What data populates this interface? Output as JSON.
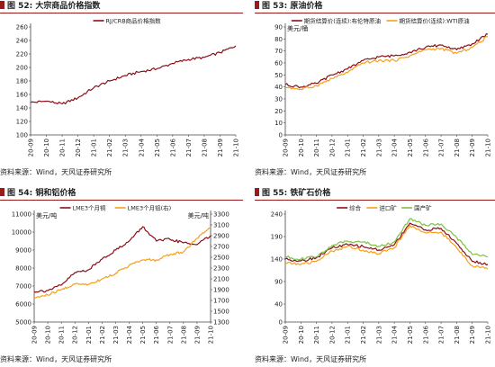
{
  "charts": [
    {
      "label": "图 52:",
      "title": "大宗商品价格指数",
      "source": "资料来源：Wind，天风证券研究所",
      "chart_data": {
        "type": "line",
        "x": [
          "2020-09",
          "2020-10",
          "2020-11",
          "2020-12",
          "2021-01",
          "2021-02",
          "2021-03",
          "2021-04",
          "2021-05",
          "2021-06",
          "2021-07",
          "2021-08",
          "2021-09",
          "2021-10"
        ],
        "series": [
          {
            "name": "RJ/CRB商品价格指数",
            "color": "#8b0f16",
            "axis": "left",
            "values": [
              148,
              150,
              146,
              155,
              170,
              180,
              188,
              194,
              198,
              206,
              212,
              215,
              222,
              232
            ]
          }
        ],
        "ylim": [
          100,
          260
        ],
        "yticks": [
          100,
          120,
          140,
          160,
          180,
          200,
          220,
          240,
          260
        ],
        "xticks": [
          "20-09",
          "20-10",
          "20-11",
          "20-12",
          "21-01",
          "21-02",
          "21-03",
          "21-04",
          "21-05",
          "21-06",
          "21-07",
          "21-08",
          "21-09",
          "21-10"
        ],
        "unit": "",
        "legend": "top-center",
        "grid": false
      }
    },
    {
      "label": "图 53:",
      "title": "原油价格",
      "source": "资料来源：Wind，天风证券研究所",
      "chart_data": {
        "type": "line",
        "x": [
          "2020-09",
          "2020-10",
          "2020-11",
          "2020-12",
          "2021-01",
          "2021-02",
          "2021-03",
          "2021-04",
          "2021-05",
          "2021-06",
          "2021-07",
          "2021-08",
          "2021-09",
          "2021-10"
        ],
        "series": [
          {
            "name": "期货结算价(连续):布伦特原油",
            "color": "#8b0f16",
            "axis": "left",
            "values": [
              42,
              40,
              43,
              50,
              55,
              62,
              65,
              66,
              69,
              73,
              75,
              71,
              76,
              84
            ]
          },
          {
            "name": "期货结算价(连续):WTI原油",
            "color": "#f5a01a",
            "axis": "left",
            "values": [
              40,
              38,
              41,
              47,
              52,
              60,
              62,
              62,
              66,
              71,
              72,
              68,
              73,
              82
            ]
          }
        ],
        "ylim": [
          0,
          90
        ],
        "yticks": [
          0,
          10,
          20,
          30,
          40,
          50,
          60,
          70,
          80,
          90
        ],
        "xticks": [
          "20-09",
          "20-10",
          "20-11",
          "20-12",
          "21-01",
          "21-02",
          "21-03",
          "21-04",
          "21-05",
          "21-06",
          "21-07",
          "21-08",
          "21-09",
          "21-10"
        ],
        "unit": "美元/桶",
        "legend": "top-center",
        "grid": false
      }
    },
    {
      "label": "图 54:",
      "title": "铜和铝价格",
      "source": "资料来源：Wind，天风证券研究所",
      "chart_data": {
        "type": "line",
        "x": [
          "2020-09",
          "2020-10",
          "2020-11",
          "2020-12",
          "2021-01",
          "2021-02",
          "2021-03",
          "2021-04",
          "2021-05",
          "2021-06",
          "2021-07",
          "2021-08",
          "2021-09",
          "2021-10"
        ],
        "series": [
          {
            "name": "LME3个月铜",
            "color": "#8b0f16",
            "axis": "left",
            "values": [
              6700,
              6750,
              7050,
              7750,
              7900,
              8500,
              9000,
              9500,
              10300,
              9500,
              9600,
              9400,
              9300,
              9800
            ]
          },
          {
            "name": "LME3个月铝(右)",
            "color": "#f5a01a",
            "axis": "right",
            "values": [
              1750,
              1800,
              1900,
              2000,
              2000,
              2100,
              2200,
              2350,
              2450,
              2450,
              2550,
              2600,
              2850,
              3050
            ]
          }
        ],
        "ylim": [
          5000,
          11000
        ],
        "yticks": [
          5000,
          6000,
          7000,
          8000,
          9000,
          10000,
          11000
        ],
        "ylim_right": [
          1300,
          3300
        ],
        "yticks_right": [
          1300,
          1500,
          1700,
          1900,
          2100,
          2300,
          2500,
          2700,
          2900,
          3100,
          3300
        ],
        "xticks": [
          "20-09",
          "20-10",
          "20-11",
          "20-12",
          "21-01",
          "21-02",
          "21-03",
          "21-04",
          "21-05",
          "21-06",
          "21-07",
          "21-08",
          "21-09",
          "21-10"
        ],
        "unit": "美元/吨",
        "unit_right": "美元/吨",
        "legend": "top-center",
        "grid": false
      }
    },
    {
      "label": "图 55:",
      "title": "铁矿石价格",
      "source": "资料来源：Wind，天风证券研究所",
      "chart_data": {
        "type": "line",
        "x": [
          "2020-09",
          "2020-10",
          "2020-11",
          "2020-12",
          "2021-01",
          "2021-02",
          "2021-03",
          "2021-04",
          "2021-05",
          "2021-06",
          "2021-07",
          "2021-08",
          "2021-09",
          "2021-10"
        ],
        "series": [
          {
            "name": "综合",
            "color": "#8b0f16",
            "axis": "left",
            "values": [
              140,
              136,
              143,
              165,
              172,
              168,
              160,
              172,
              220,
              205,
              208,
              175,
              135,
              128
            ]
          },
          {
            "name": "进口矿",
            "color": "#f5a01a",
            "axis": "left",
            "values": [
              132,
              128,
              135,
              158,
              168,
              160,
              152,
              165,
              215,
              198,
              200,
              165,
              125,
              118
            ]
          },
          {
            "name": "国产矿",
            "color": "#7dc242",
            "axis": "left",
            "values": [
              145,
              140,
              145,
              170,
              180,
              178,
              168,
              178,
              230,
              215,
              218,
              188,
              150,
              145
            ]
          }
        ],
        "ylim": [
          0,
          240
        ],
        "yticks": [
          0,
          40,
          90,
          140,
          190,
          240
        ],
        "xticks": [
          "20-09",
          "20-10",
          "20-11",
          "20-12",
          "21-01",
          "21-02",
          "21-03",
          "21-04",
          "21-05",
          "21-06",
          "21-07",
          "21-08",
          "21-09",
          "21-10"
        ],
        "unit": "",
        "legend": "top-center",
        "grid": false
      }
    }
  ]
}
